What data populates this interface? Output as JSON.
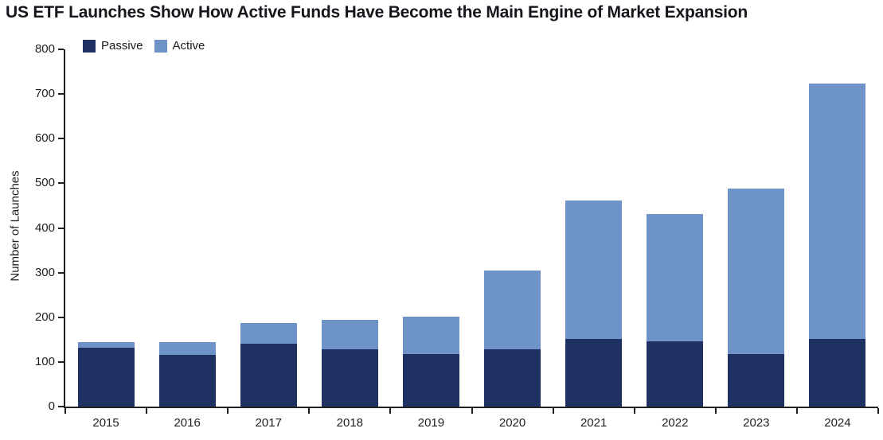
{
  "header": {
    "title": "US ETF Launches Show How Active Funds Have Become the Main Engine of Market Expansion"
  },
  "chart_data": {
    "type": "bar",
    "stacked": true,
    "title": "US ETF Launches Show How Active Funds Have Become the Main Engine of Market Expansion",
    "xlabel": "",
    "ylabel": "Number of Launches",
    "ylim": [
      0,
      800
    ],
    "ytick_step": 100,
    "yticks": [
      0,
      100,
      200,
      300,
      400,
      500,
      600,
      700,
      800
    ],
    "grid": false,
    "legend_position": "top-left",
    "categories": [
      "2015",
      "2016",
      "2017",
      "2018",
      "2019",
      "2020",
      "2021",
      "2022",
      "2023",
      "2024"
    ],
    "series": [
      {
        "name": "Passive",
        "color": "#1e3162",
        "values": [
          131,
          115,
          140,
          129,
          117,
          129,
          152,
          147,
          117,
          151
        ]
      },
      {
        "name": "Active",
        "color": "#6e93c8",
        "values": [
          14,
          30,
          48,
          66,
          85,
          176,
          310,
          284,
          371,
          572
        ]
      }
    ]
  },
  "style": {
    "axis_color": "#1f1f1f",
    "text_color": "#1f1f1f",
    "title_color": "#15151c",
    "background": "#ffffff"
  }
}
